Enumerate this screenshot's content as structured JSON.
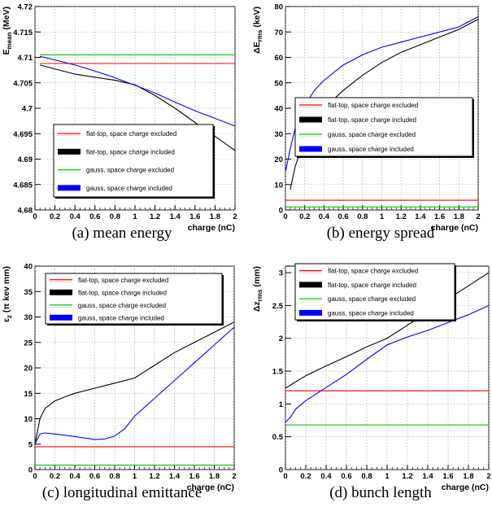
{
  "chart_data": [
    {
      "type": "line",
      "caption": "(a) mean energy",
      "xlabel": "charge (nC)",
      "ylabel": "E_mean (MeV)",
      "ylabel_main": "E",
      "ylabel_sub": "mean",
      "ylabel_unit": "(MeV)",
      "xlim": [
        0,
        2
      ],
      "ylim": [
        4.68,
        4.72
      ],
      "xticks": [
        "0",
        "0.2",
        "0.4",
        "0.6",
        "0.8",
        "1",
        "1.2",
        "1.4",
        "1.6",
        "1.8",
        "2"
      ],
      "yticks": [
        "4.68",
        "4.685",
        "4.69",
        "4.695",
        "4.7",
        "4.705",
        "4.71",
        "4.715",
        "4.72"
      ],
      "grid": true,
      "legend": {
        "position": "lower-right",
        "entries": [
          "flat-top, space charge excluded",
          "flat-top, space charge included",
          "gauss, space charge excluded",
          "gauss, space charge included"
        ]
      },
      "series": [
        {
          "name": "flat-top, space charge excluded",
          "color": "#ff0000",
          "x": [
            0.05,
            2.0
          ],
          "y": [
            4.7088,
            4.7088
          ]
        },
        {
          "name": "flat-top, space charge included",
          "color": "#000000",
          "x": [
            0.05,
            0.4,
            0.8,
            1.0,
            1.2,
            1.4,
            1.6,
            1.8,
            2.0
          ],
          "y": [
            4.7085,
            4.7067,
            4.7055,
            4.7046,
            4.7025,
            4.7,
            4.6972,
            4.6945,
            4.6917
          ]
        },
        {
          "name": "gauss, space charge excluded",
          "color": "#00cc00",
          "x": [
            0.05,
            2.0
          ],
          "y": [
            4.7105,
            4.7105
          ]
        },
        {
          "name": "gauss, space charge included",
          "color": "#0000ff",
          "x": [
            0.05,
            0.2,
            0.4,
            0.6,
            0.8,
            1.0,
            1.2,
            1.4,
            1.6,
            1.8,
            2.0
          ],
          "y": [
            4.7102,
            4.7095,
            4.7085,
            4.7073,
            4.706,
            4.7045,
            4.703,
            4.7012,
            4.6995,
            4.698,
            4.6965
          ]
        }
      ]
    },
    {
      "type": "line",
      "caption": "(b) energy spread",
      "xlabel": "charge (nC)",
      "ylabel": "ΔE_rms (keV)",
      "ylabel_main": "ΔE",
      "ylabel_sub": "rms",
      "ylabel_unit": "(keV)",
      "xlim": [
        0,
        2
      ],
      "ylim": [
        0,
        80
      ],
      "xticks": [
        "0",
        "0.2",
        "0.4",
        "0.6",
        "0.8",
        "1",
        "1.2",
        "1.4",
        "1.6",
        "1.8",
        "2"
      ],
      "yticks": [
        "0",
        "10",
        "20",
        "30",
        "40",
        "50",
        "60",
        "70",
        "80"
      ],
      "grid": true,
      "legend": {
        "position": "lower-right",
        "entries": [
          "flat-top, space charge excluded",
          "flat-top, space charge included",
          "gauss, space charge excluded",
          "gauss, space charge included"
        ]
      },
      "series": [
        {
          "name": "flat-top, space charge excluded",
          "color": "#ff0000",
          "x": [
            0.0,
            2.0
          ],
          "y": [
            3.8,
            3.8
          ]
        },
        {
          "name": "flat-top, space charge included",
          "color": "#000000",
          "x": [
            0.05,
            0.1,
            0.2,
            0.3,
            0.4,
            0.6,
            0.8,
            1.0,
            1.2,
            1.4,
            1.6,
            1.8,
            2.0
          ],
          "y": [
            8,
            17,
            28,
            35,
            40,
            47,
            53,
            58,
            62,
            65,
            68,
            71,
            75
          ]
        },
        {
          "name": "gauss, space charge excluded",
          "color": "#00cc00",
          "x": [
            0.0,
            2.0
          ],
          "y": [
            1.2,
            1.2
          ]
        },
        {
          "name": "gauss, space charge included",
          "color": "#0000ff",
          "x": [
            0.0,
            0.05,
            0.1,
            0.2,
            0.3,
            0.4,
            0.6,
            0.8,
            1.0,
            1.2,
            1.4,
            1.6,
            1.8,
            2.0
          ],
          "y": [
            15,
            24,
            32,
            41,
            47,
            51,
            57,
            61,
            64,
            66,
            68,
            70,
            72,
            76
          ]
        }
      ]
    },
    {
      "type": "line",
      "caption": "(c) longitudinal emittance",
      "xlabel": "charge (nC)",
      "ylabel": "ε_z (π kev mm)",
      "ylabel_main": "ε",
      "ylabel_sub": "z",
      "ylabel_unit": "(π kev mm)",
      "xlim": [
        0,
        2
      ],
      "ylim": [
        0,
        40
      ],
      "xticks": [
        "0",
        "0.2",
        "0.4",
        "0.6",
        "0.8",
        "1",
        "1.2",
        "1.4",
        "1.6",
        "1.8",
        "2"
      ],
      "yticks": [
        "0",
        "5",
        "10",
        "15",
        "20",
        "25",
        "30",
        "35",
        "40"
      ],
      "grid": true,
      "legend": {
        "position": "top-right",
        "entries": [
          "flat-top, space charge excluded",
          "flat-top, space charge included",
          "gauss, space charge excluded",
          "gauss, space charge included"
        ]
      },
      "series": [
        {
          "name": "flat-top, space charge excluded",
          "color": "#ff0000",
          "x": [
            0.0,
            2.0
          ],
          "y": [
            4.5,
            4.5
          ]
        },
        {
          "name": "flat-top, space charge included",
          "color": "#000000",
          "x": [
            0.0,
            0.05,
            0.1,
            0.2,
            0.3,
            0.4,
            0.6,
            0.8,
            1.0,
            1.2,
            1.4,
            1.6,
            1.8,
            2.0
          ],
          "y": [
            5,
            10,
            12,
            13.5,
            14.3,
            15,
            16,
            17,
            18,
            20.5,
            23,
            25,
            27,
            29
          ]
        },
        {
          "name": "gauss, space charge excluded",
          "color": "#00cc00",
          "x": [
            0.0,
            2.0
          ],
          "y": [
            0.9,
            0.9
          ]
        },
        {
          "name": "gauss, space charge included",
          "color": "#0000ff",
          "x": [
            0.0,
            0.05,
            0.1,
            0.2,
            0.4,
            0.6,
            0.7,
            0.8,
            0.9,
            1.0,
            1.2,
            1.4,
            1.6,
            1.8,
            2.0
          ],
          "y": [
            5,
            7,
            7.2,
            7,
            6.5,
            5.9,
            6,
            6.6,
            8,
            10.5,
            14,
            17.5,
            21,
            24.5,
            28
          ]
        }
      ]
    },
    {
      "type": "line",
      "caption": "(d) bunch length",
      "xlabel": "charge (nC)",
      "ylabel": "Δz_rms (mm)",
      "ylabel_main": "Δz",
      "ylabel_sub": "rms",
      "ylabel_unit": "(mm)",
      "xlim": [
        0,
        2
      ],
      "ylim": [
        0,
        3.1
      ],
      "xticks": [
        "0",
        "0.2",
        "0.4",
        "0.6",
        "0.8",
        "1",
        "1.2",
        "1.4",
        "1.6",
        "1.8",
        "2"
      ],
      "yticks": [
        "0",
        "0.5",
        "1",
        "1.5",
        "2",
        "2.5",
        "3"
      ],
      "grid": true,
      "legend": {
        "position": "top-left",
        "entries": [
          "flat-top, space charge excluded",
          "flat-top, space charge included",
          "gauss, space charge excluded",
          "gauss, space charge included"
        ]
      },
      "series": [
        {
          "name": "flat-top, space charge excluded",
          "color": "#ff0000",
          "x": [
            0.0,
            2.0
          ],
          "y": [
            1.2,
            1.2
          ]
        },
        {
          "name": "flat-top, space charge included",
          "color": "#000000",
          "x": [
            0.0,
            0.2,
            0.4,
            0.6,
            0.8,
            1.0,
            1.2,
            1.4,
            1.6,
            1.8,
            2.0
          ],
          "y": [
            1.24,
            1.43,
            1.58,
            1.72,
            1.87,
            2.0,
            2.2,
            2.4,
            2.6,
            2.8,
            3.0
          ]
        },
        {
          "name": "gauss, space charge excluded",
          "color": "#00cc00",
          "x": [
            0.0,
            2.0
          ],
          "y": [
            0.68,
            0.68
          ]
        },
        {
          "name": "gauss, space charge included",
          "color": "#0000ff",
          "x": [
            0.0,
            0.05,
            0.1,
            0.2,
            0.3,
            0.4,
            0.6,
            0.8,
            1.0,
            1.2,
            1.4,
            1.6,
            1.8,
            2.0
          ],
          "y": [
            0.72,
            0.8,
            0.92,
            1.05,
            1.15,
            1.25,
            1.45,
            1.68,
            1.9,
            2.02,
            2.12,
            2.24,
            2.36,
            2.5
          ]
        }
      ]
    }
  ]
}
